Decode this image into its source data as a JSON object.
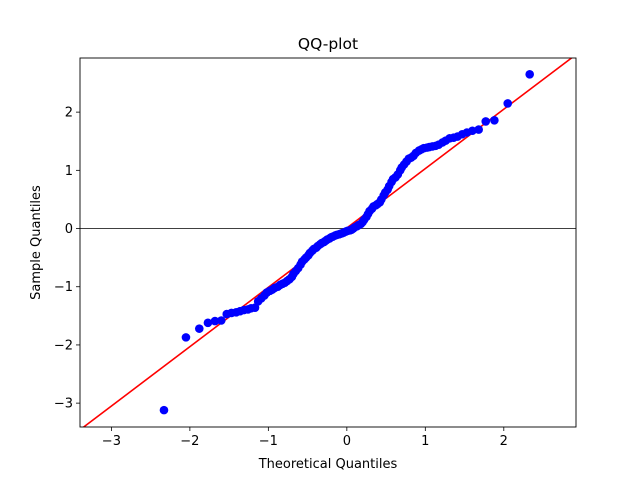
{
  "chart_data": {
    "type": "scatter",
    "title": "QQ-plot",
    "xlabel": "Theoretical Quantiles",
    "ylabel": "Sample Quantiles",
    "xlim": [
      -3.4,
      2.92
    ],
    "ylim": [
      -3.41,
      2.93
    ],
    "xticks": [
      -3,
      -2,
      -1,
      0,
      1,
      2
    ],
    "yticks": [
      -3,
      -2,
      -1,
      0,
      1,
      2
    ],
    "xtick_labels": [
      "−3",
      "−2",
      "−1",
      "0",
      "1",
      "2"
    ],
    "ytick_labels": [
      "−3",
      "−2",
      "−1",
      "0",
      "1",
      "2"
    ],
    "grid": false,
    "colors": {
      "points": "#0000ff",
      "reference_line": "#ff0000",
      "zero_line": "#000000"
    },
    "reference_line": {
      "slope": 1.02,
      "intercept": 0.01
    },
    "horizontal_line_y": 0,
    "points": {
      "x": [
        -2.33,
        -2.05,
        -1.88,
        -1.77,
        -1.68,
        -1.6,
        -1.53,
        -1.47,
        -1.41,
        -1.36,
        -1.31,
        -1.26,
        -1.22,
        -1.17,
        -1.13,
        -1.09,
        -1.05,
        -1.02,
        -0.98,
        -0.95,
        -0.92,
        -0.88,
        -0.85,
        -0.82,
        -0.79,
        -0.76,
        -0.73,
        -0.7,
        -0.68,
        -0.65,
        -0.62,
        -0.59,
        -0.57,
        -0.54,
        -0.52,
        -0.49,
        -0.47,
        -0.44,
        -0.42,
        -0.39,
        -0.37,
        -0.34,
        -0.32,
        -0.29,
        -0.27,
        -0.25,
        -0.22,
        -0.2,
        -0.18,
        -0.15,
        -0.13,
        -0.1,
        -0.08,
        -0.06,
        -0.04,
        -0.01,
        0.01,
        0.04,
        0.06,
        0.08,
        0.1,
        0.13,
        0.15,
        0.18,
        0.2,
        0.22,
        0.25,
        0.27,
        0.29,
        0.32,
        0.34,
        0.37,
        0.39,
        0.42,
        0.44,
        0.47,
        0.49,
        0.52,
        0.54,
        0.57,
        0.59,
        0.62,
        0.65,
        0.68,
        0.7,
        0.73,
        0.76,
        0.79,
        0.82,
        0.85,
        0.88,
        0.92,
        0.95,
        0.98,
        1.02,
        1.05,
        1.09,
        1.13,
        1.17,
        1.22,
        1.26,
        1.31,
        1.36,
        1.41,
        1.47,
        1.53,
        1.6,
        1.68,
        1.77,
        1.88,
        2.05,
        2.33
      ],
      "y": [
        -3.12,
        -1.87,
        -1.72,
        -1.62,
        -1.59,
        -1.58,
        -1.47,
        -1.45,
        -1.44,
        -1.42,
        -1.4,
        -1.39,
        -1.37,
        -1.36,
        -1.25,
        -1.2,
        -1.15,
        -1.1,
        -1.07,
        -1.05,
        -1.02,
        -1.0,
        -0.97,
        -0.95,
        -0.93,
        -0.9,
        -0.87,
        -0.83,
        -0.78,
        -0.73,
        -0.68,
        -0.62,
        -0.57,
        -0.53,
        -0.5,
        -0.46,
        -0.42,
        -0.38,
        -0.35,
        -0.33,
        -0.3,
        -0.27,
        -0.25,
        -0.23,
        -0.21,
        -0.19,
        -0.17,
        -0.15,
        -0.14,
        -0.12,
        -0.11,
        -0.1,
        -0.09,
        -0.08,
        -0.07,
        -0.05,
        -0.04,
        -0.03,
        -0.02,
        0.0,
        0.02,
        0.04,
        0.06,
        0.08,
        0.11,
        0.15,
        0.2,
        0.25,
        0.3,
        0.34,
        0.38,
        0.4,
        0.42,
        0.45,
        0.5,
        0.57,
        0.62,
        0.67,
        0.73,
        0.8,
        0.85,
        0.88,
        0.93,
        1.0,
        1.05,
        1.1,
        1.15,
        1.2,
        1.22,
        1.25,
        1.3,
        1.34,
        1.36,
        1.38,
        1.39,
        1.4,
        1.41,
        1.42,
        1.44,
        1.48,
        1.51,
        1.55,
        1.56,
        1.58,
        1.62,
        1.65,
        1.68,
        1.7,
        1.84,
        1.86,
        2.15,
        2.65
      ]
    }
  }
}
